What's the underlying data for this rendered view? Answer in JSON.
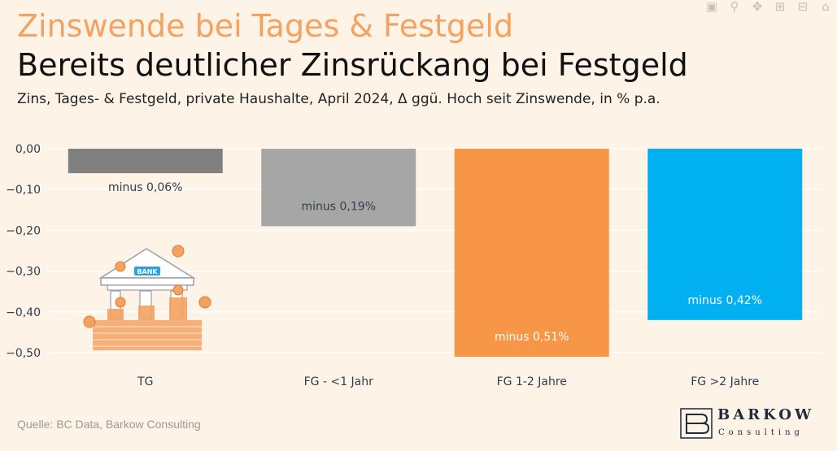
{
  "header": {
    "title": "Zinswende bei Tages & Festgeld",
    "headline": "Bereits deutlicher Zinsrückang bei Festgeld",
    "subtitle": "Zins, Tages- & Festgeld, private Haushalte, April 2024, Δ ggü. Hoch seit Zinswende, in % p.a."
  },
  "footer": {
    "source": "Quelle: BC Data, Barkow Consulting"
  },
  "logo": {
    "line1": "BARKOW",
    "line2": "Consulting"
  },
  "illustration": {
    "label": "BANK"
  },
  "modebar": {
    "icons": [
      "camera-icon",
      "zoom-icon",
      "pan-icon",
      "zoom-in-icon",
      "zoom-out-icon",
      "autoscale-icon"
    ]
  },
  "chart_data": {
    "type": "bar",
    "categories": [
      "TG",
      "FG - <1 Jahr",
      "FG 1-2 Jahre",
      "FG >2 Jahre"
    ],
    "values": [
      -0.06,
      -0.19,
      -0.51,
      -0.42
    ],
    "colors": [
      "#808080",
      "#a6a6a6",
      "#f79646",
      "#00b0f0"
    ],
    "data_labels": [
      "minus 0,06%",
      "minus 0,19%",
      "minus 0,51%",
      "minus 0,42%"
    ],
    "label_colors": [
      "#2f3e4e",
      "#2f3e4e",
      "#ffffff",
      "#ffffff"
    ],
    "yticks": [
      0,
      -0.1,
      -0.2,
      -0.3,
      -0.4,
      -0.5
    ],
    "ytick_labels": [
      "0,00",
      "−0,10",
      "−0,20",
      "−0,30",
      "−0,40",
      "−0,50"
    ],
    "ylim": [
      -0.53,
      0.01
    ],
    "grid": true,
    "legend": "none"
  }
}
